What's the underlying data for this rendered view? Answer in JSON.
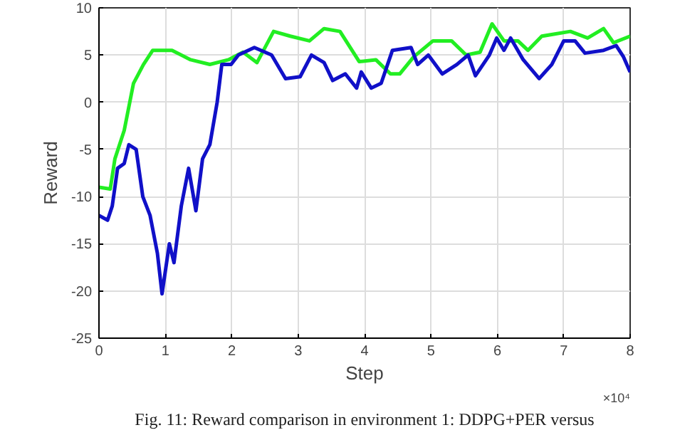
{
  "chart_data": {
    "type": "line",
    "xlabel": "Step",
    "ylabel": "Reward",
    "xlim": [
      0,
      8
    ],
    "ylim": [
      -25,
      10
    ],
    "xticks": [
      0,
      1,
      2,
      3,
      4,
      5,
      6,
      7,
      8
    ],
    "yticks": [
      -25,
      -20,
      -15,
      -10,
      -5,
      0,
      5,
      10
    ],
    "grid": true,
    "line_style": "solid",
    "annotations": [
      "×10⁴",
      "Fig. 11: Reward comparison in environment 1: DDPG+PER versus"
    ],
    "series": [
      {
        "color": "#22ee22",
        "x": [
          0,
          0.17,
          0.24,
          0.38,
          0.52,
          0.67,
          0.81,
          1.1,
          1.38,
          1.67,
          1.95,
          2.17,
          2.38,
          2.63,
          2.88,
          3.17,
          3.39,
          3.63,
          3.92,
          4.17,
          4.39,
          4.53,
          4.74,
          5.03,
          5.31,
          5.53,
          5.74,
          5.92,
          6.1,
          6.31,
          6.46,
          6.67,
          7.1,
          7.36,
          7.6,
          7.75,
          8
        ],
        "values": [
          -9,
          -9.2,
          -6,
          -3,
          2,
          4,
          5.5,
          5.5,
          4.5,
          4,
          4.5,
          5.3,
          4.2,
          7.5,
          7,
          6.5,
          7.8,
          7.5,
          4.3,
          4.5,
          3,
          3,
          4.8,
          6.5,
          6.5,
          5,
          5.3,
          8.3,
          6.5,
          6.5,
          5.5,
          7,
          7.5,
          6.8,
          7.8,
          6.3,
          7
        ]
      },
      {
        "color": "#1010c8",
        "x": [
          0,
          0.13,
          0.2,
          0.28,
          0.38,
          0.45,
          0.56,
          0.66,
          0.77,
          0.88,
          0.95,
          1.06,
          1.13,
          1.24,
          1.35,
          1.46,
          1.56,
          1.67,
          1.78,
          1.85,
          1.99,
          2.1,
          2.34,
          2.6,
          2.81,
          3.03,
          3.2,
          3.39,
          3.52,
          3.71,
          3.88,
          3.95,
          4.1,
          4.25,
          4.42,
          4.7,
          4.8,
          4.96,
          5.17,
          5.39,
          5.56,
          5.67,
          5.88,
          5.99,
          6.1,
          6.2,
          6.39,
          6.63,
          6.82,
          7.0,
          7.17,
          7.32,
          7.6,
          7.79,
          7.9,
          8
        ],
        "values": [
          -12,
          -12.5,
          -11,
          -7,
          -6.5,
          -4.5,
          -5,
          -10,
          -12,
          -16,
          -20.3,
          -15,
          -17,
          -11,
          -7,
          -11.5,
          -6,
          -4.5,
          0,
          4,
          4,
          5,
          5.8,
          5,
          2.5,
          2.7,
          5,
          4.2,
          2.3,
          3,
          1.5,
          3.2,
          1.5,
          2,
          5.5,
          5.8,
          4,
          5,
          3,
          4,
          5,
          2.8,
          5,
          6.8,
          5.5,
          6.8,
          4.5,
          2.5,
          4,
          6.5,
          6.5,
          5.2,
          5.5,
          6,
          4.8,
          3.2
        ]
      }
    ]
  }
}
